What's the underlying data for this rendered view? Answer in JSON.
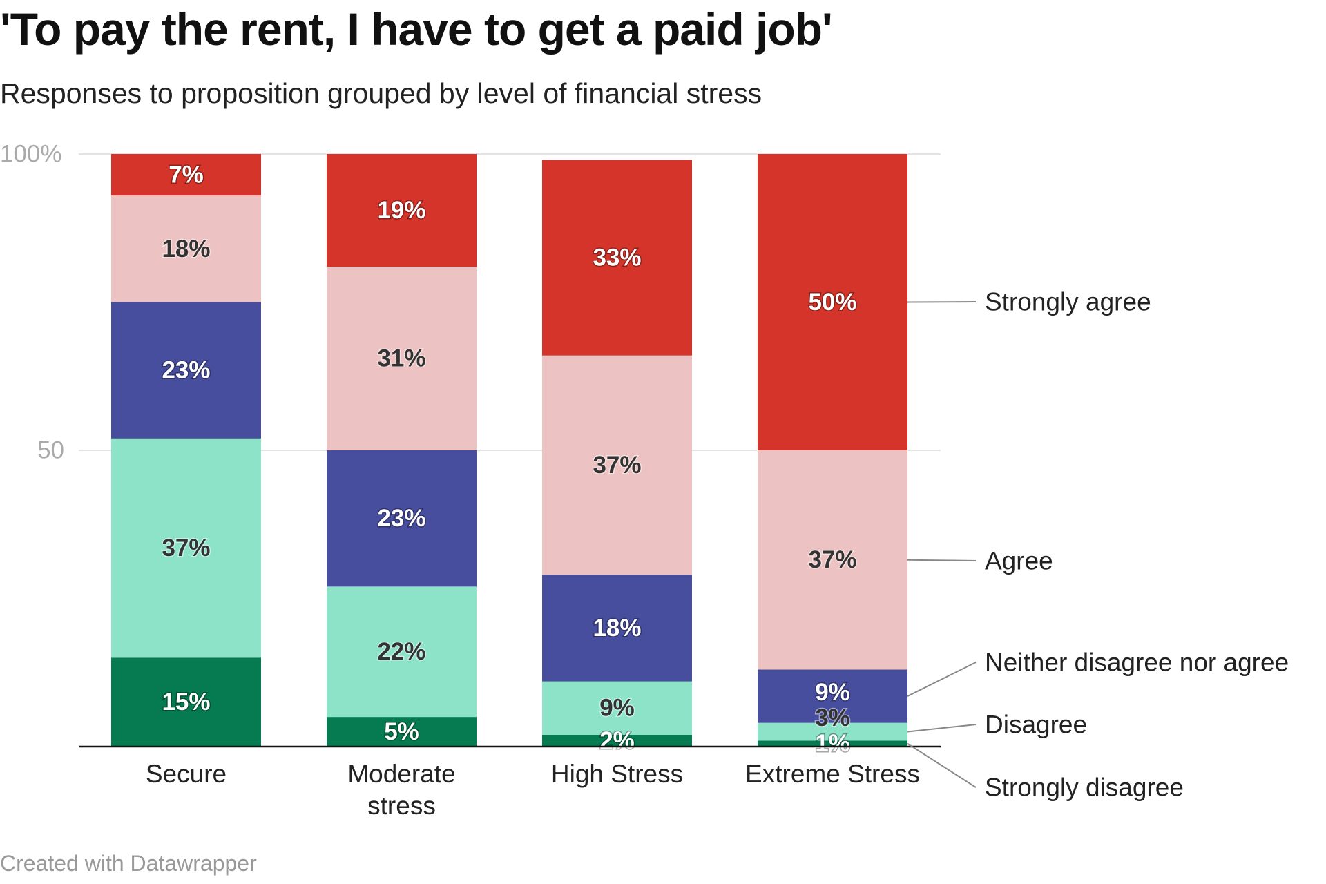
{
  "chart_data": {
    "type": "bar",
    "stacked": true,
    "title": "'To pay the rent, I have to get a paid job'",
    "subtitle": "Responses to proposition grouped by level of financial stress",
    "categories": [
      "Secure",
      "Moderate stress",
      "High Stress",
      "Extreme Stress"
    ],
    "series": [
      {
        "name": "Strongly disagree",
        "color": "#067a50",
        "label_color": "light",
        "values": [
          15,
          5,
          2,
          1
        ]
      },
      {
        "name": "Disagree",
        "color": "#8de3c8",
        "label_color": "dark",
        "values": [
          37,
          22,
          9,
          3
        ]
      },
      {
        "name": "Neither disagree nor agree",
        "color": "#474e9e",
        "label_color": "light",
        "values": [
          23,
          23,
          18,
          9
        ]
      },
      {
        "name": "Agree",
        "color": "#ecc3c2",
        "label_color": "dark",
        "values": [
          18,
          31,
          37,
          37
        ]
      },
      {
        "name": "Strongly agree",
        "color": "#d5342a",
        "label_color": "light",
        "values": [
          7,
          19,
          33,
          50
        ]
      }
    ],
    "value_suffix": "%",
    "ylim": [
      0,
      100
    ],
    "yticks": [
      {
        "value": 50,
        "label": "50"
      },
      {
        "value": 100,
        "label": "100%"
      }
    ],
    "grid": true,
    "legend": "right (direct labels)"
  },
  "footer": "Created with Datawrapper"
}
